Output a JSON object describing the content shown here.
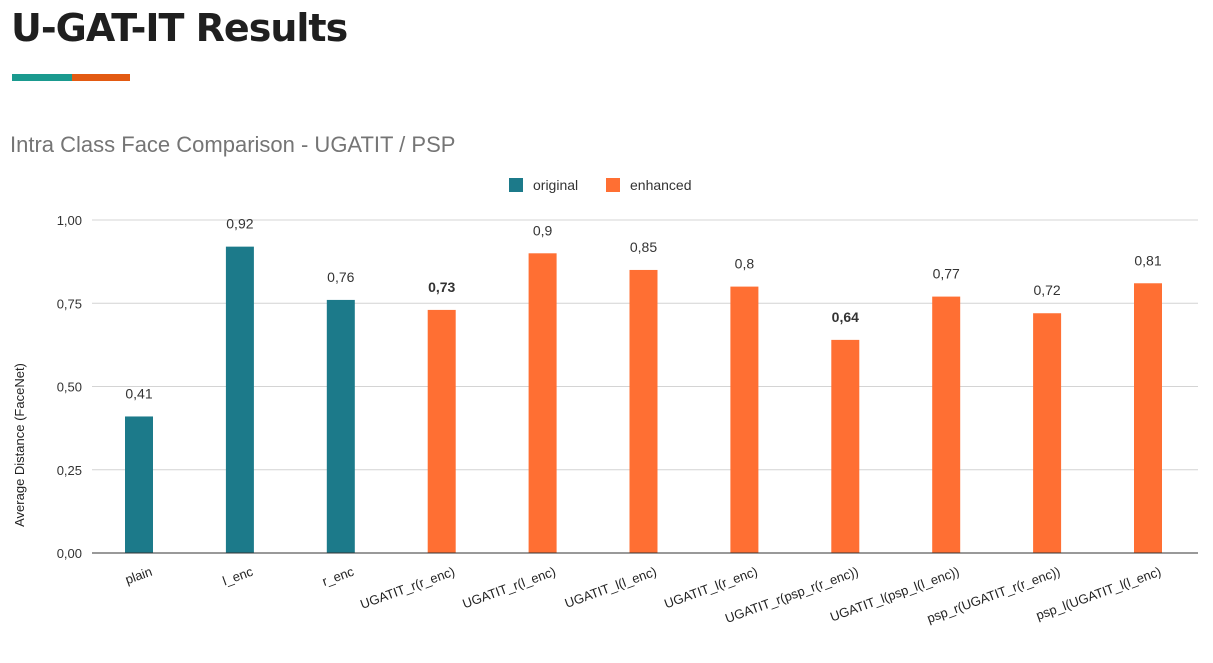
{
  "page": {
    "title": "U-GAT-IT Results",
    "accent_colors": [
      "#1a9a8f",
      "#e35a12"
    ]
  },
  "chart_data": {
    "type": "bar",
    "title": "Intra Class Face Comparison - UGATIT / PSP",
    "xlabel": "",
    "ylabel": "Average Distance (FaceNet)",
    "ylim": [
      0,
      1
    ],
    "yticks": [
      0,
      0.25,
      0.5,
      0.75,
      1.0
    ],
    "ytick_labels": [
      "0,00",
      "0,25",
      "0,50",
      "0,75",
      "1,00"
    ],
    "grid": true,
    "legend_position": "top-center",
    "series": [
      {
        "name": "original",
        "color": "#1c7a8a"
      },
      {
        "name": "enhanced",
        "color": "#ff6f33"
      }
    ],
    "categories": [
      "plain",
      "l_enc",
      "r_enc",
      "UGATIT_r(r_enc)",
      "UGATIT_r(l_enc)",
      "UGATIT_l(l_enc)",
      "UGATIT_l(r_enc)",
      "UGATIT_r(psp_r(r_enc))",
      "UGATIT_l(psp_l(l_enc))",
      "psp_r(UGATIT_r(r_enc))",
      "psp_l(UGATIT_l(l_enc)"
    ],
    "values": [
      0.41,
      0.92,
      0.76,
      0.73,
      0.9,
      0.85,
      0.8,
      0.64,
      0.77,
      0.72,
      0.81
    ],
    "value_labels": [
      "0,41",
      "0,92",
      "0,76",
      "0,73",
      "0,9",
      "0,85",
      "0,8",
      "0,64",
      "0,77",
      "0,72",
      "0,81"
    ],
    "bar_series": [
      "original",
      "original",
      "original",
      "enhanced",
      "enhanced",
      "enhanced",
      "enhanced",
      "enhanced",
      "enhanced",
      "enhanced",
      "enhanced"
    ],
    "bold_labels": [
      false,
      false,
      false,
      true,
      false,
      false,
      false,
      true,
      false,
      false,
      false
    ]
  }
}
